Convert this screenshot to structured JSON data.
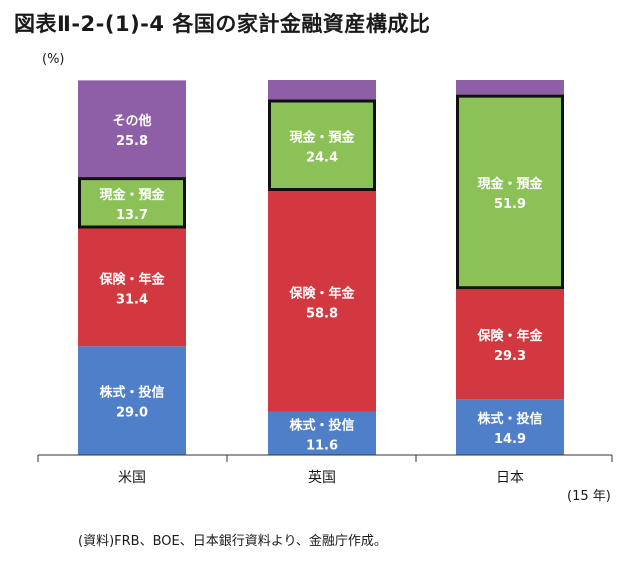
{
  "title": "図表Ⅱ-2-(1)-4 各国の家計金融資産構成比",
  "unit_label": "(%)",
  "year_label": "(15 年)",
  "source": "(資料)FRB、BOE、日本銀行資料より、金融庁作成。",
  "chart_data": {
    "type": "bar",
    "stacked": true,
    "categories": [
      "米国",
      "英国",
      "日本"
    ],
    "series": [
      {
        "name": "株式・投信",
        "values": [
          29.0,
          11.6,
          14.9
        ],
        "color": "#4F7FC8"
      },
      {
        "name": "保険・年金",
        "values": [
          31.4,
          58.8,
          29.3
        ],
        "color": "#D2383F"
      },
      {
        "name": "現金・預金",
        "values": [
          13.7,
          24.4,
          51.9
        ],
        "color": "#8BC157",
        "highlighted": true
      },
      {
        "name": "その他",
        "values": [
          25.8,
          5.2,
          3.9
        ],
        "color": "#8E5FA6"
      }
    ],
    "shown_value_labels": [
      [
        "29.0",
        "11.6",
        "14.9"
      ],
      [
        "31.4",
        "58.8",
        "29.3"
      ],
      [
        "13.7",
        "24.4",
        "51.9"
      ],
      [
        "25.8",
        "",
        ""
      ]
    ],
    "ylim": [
      0,
      100
    ],
    "grid": false,
    "legend": "none",
    "label_color": "#ffffff"
  }
}
